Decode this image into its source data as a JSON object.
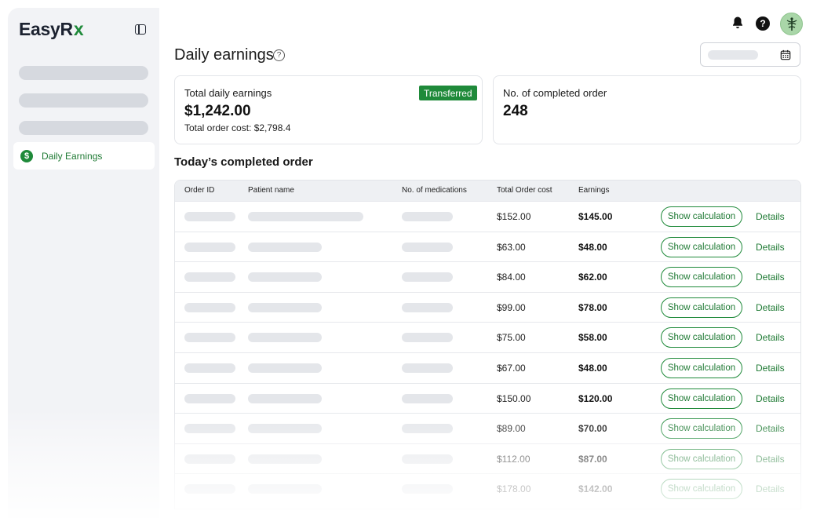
{
  "brand": {
    "name": "EasyR",
    "mark": "x",
    "accent": "#1f8a3a"
  },
  "sidebar": {
    "active_item": {
      "label": "Daily Earnings",
      "icon": "dollar-circle-icon"
    },
    "placeholder_items": 3
  },
  "header": {
    "icons": [
      "bell-icon",
      "help-icon",
      "avatar"
    ]
  },
  "page": {
    "title": "Daily earnings",
    "title_icon": "help-circle-icon",
    "date_icon": "calendar-icon"
  },
  "cards": {
    "earnings": {
      "title": "Total daily earnings",
      "badge": "Transferred",
      "value": "$1,242.00",
      "sub": "Total order cost: $2,798.4"
    },
    "orders": {
      "title": "No. of completed order",
      "value": "248"
    }
  },
  "section": {
    "title": "Today’s completed order"
  },
  "table": {
    "columns": [
      "Order ID",
      "Patient name",
      "No. of medications",
      "Total Order cost",
      "Earnings"
    ],
    "rows": [
      {
        "cost": "$152.00",
        "earnings": "$145.00",
        "action": "Show calculation",
        "link": "Details"
      },
      {
        "cost": "$63.00",
        "earnings": "$48.00",
        "action": "Show calculation",
        "link": "Details"
      },
      {
        "cost": "$84.00",
        "earnings": "$62.00",
        "action": "Show calculation",
        "link": "Details"
      },
      {
        "cost": "$99.00",
        "earnings": "$78.00",
        "action": "Show calculation",
        "link": "Details"
      },
      {
        "cost": "$75.00",
        "earnings": "$58.00",
        "action": "Show calculation",
        "link": "Details"
      },
      {
        "cost": "$67.00",
        "earnings": "$48.00",
        "action": "Show calculation",
        "link": "Details"
      },
      {
        "cost": "$150.00",
        "earnings": "$120.00",
        "action": "Show calculation",
        "link": "Details"
      },
      {
        "cost": "$89.00",
        "earnings": "$70.00",
        "action": "Show calculation",
        "link": "Details"
      },
      {
        "cost": "$112.00",
        "earnings": "$87.00",
        "action": "Show calculation",
        "link": "Details"
      },
      {
        "cost": "$178.00",
        "earnings": "$142.00",
        "action": "Show calculation",
        "link": "Details"
      }
    ]
  }
}
